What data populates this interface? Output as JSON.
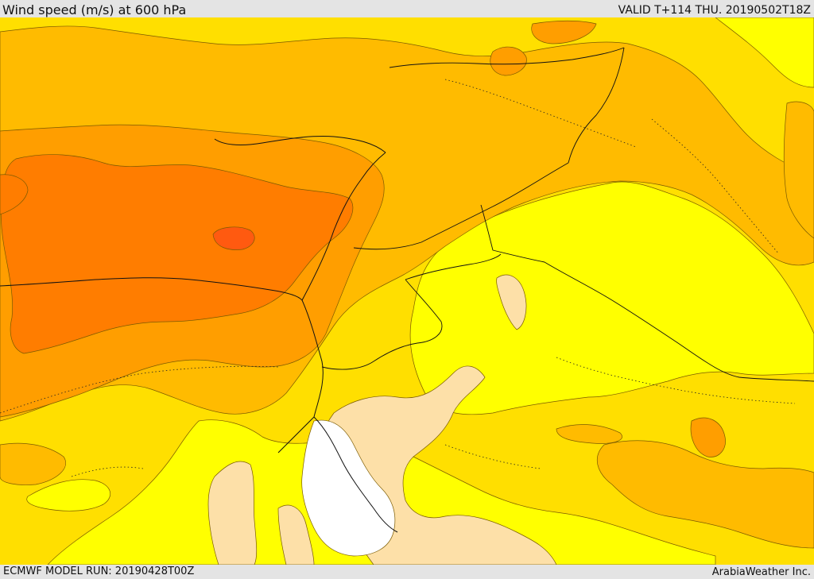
{
  "header": {
    "title": "Wind speed (m/s) at 600 hPa",
    "valid": "VALID T+114 THU. 20190502T18Z"
  },
  "footer": {
    "model_run": "ECMWF MODEL RUN: 20190428T00Z",
    "credit": "ArabiaWeather Inc."
  },
  "colors": {
    "level_1": "#ffffff",
    "level_2": "#fde0a8",
    "level_3": "#ffff00",
    "level_4": "#ffdf00",
    "level_5": "#ffbb00",
    "level_6": "#ff9e00",
    "level_7": "#ff7d00",
    "level_8": "#ff5a10"
  }
}
